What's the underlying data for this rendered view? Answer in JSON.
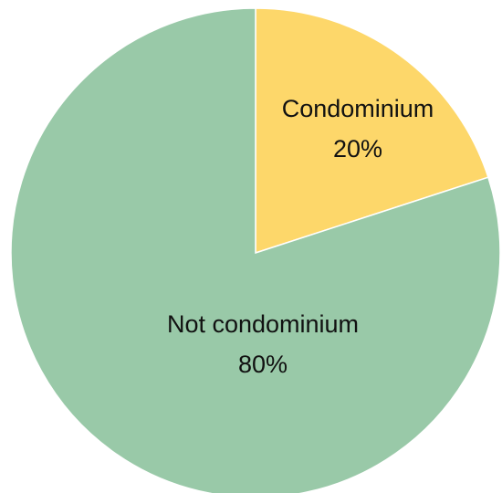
{
  "chart_data": {
    "type": "pie",
    "title": "",
    "slices": [
      {
        "label": "Condominium",
        "value_text": "20%",
        "value": 20,
        "color": "#FDD76A"
      },
      {
        "label": "Not condominium",
        "value_text": "80%",
        "value": 80,
        "color": "#99C9A8"
      }
    ],
    "start": "12 o'clock",
    "direction": "clockwise",
    "legend": "none"
  }
}
